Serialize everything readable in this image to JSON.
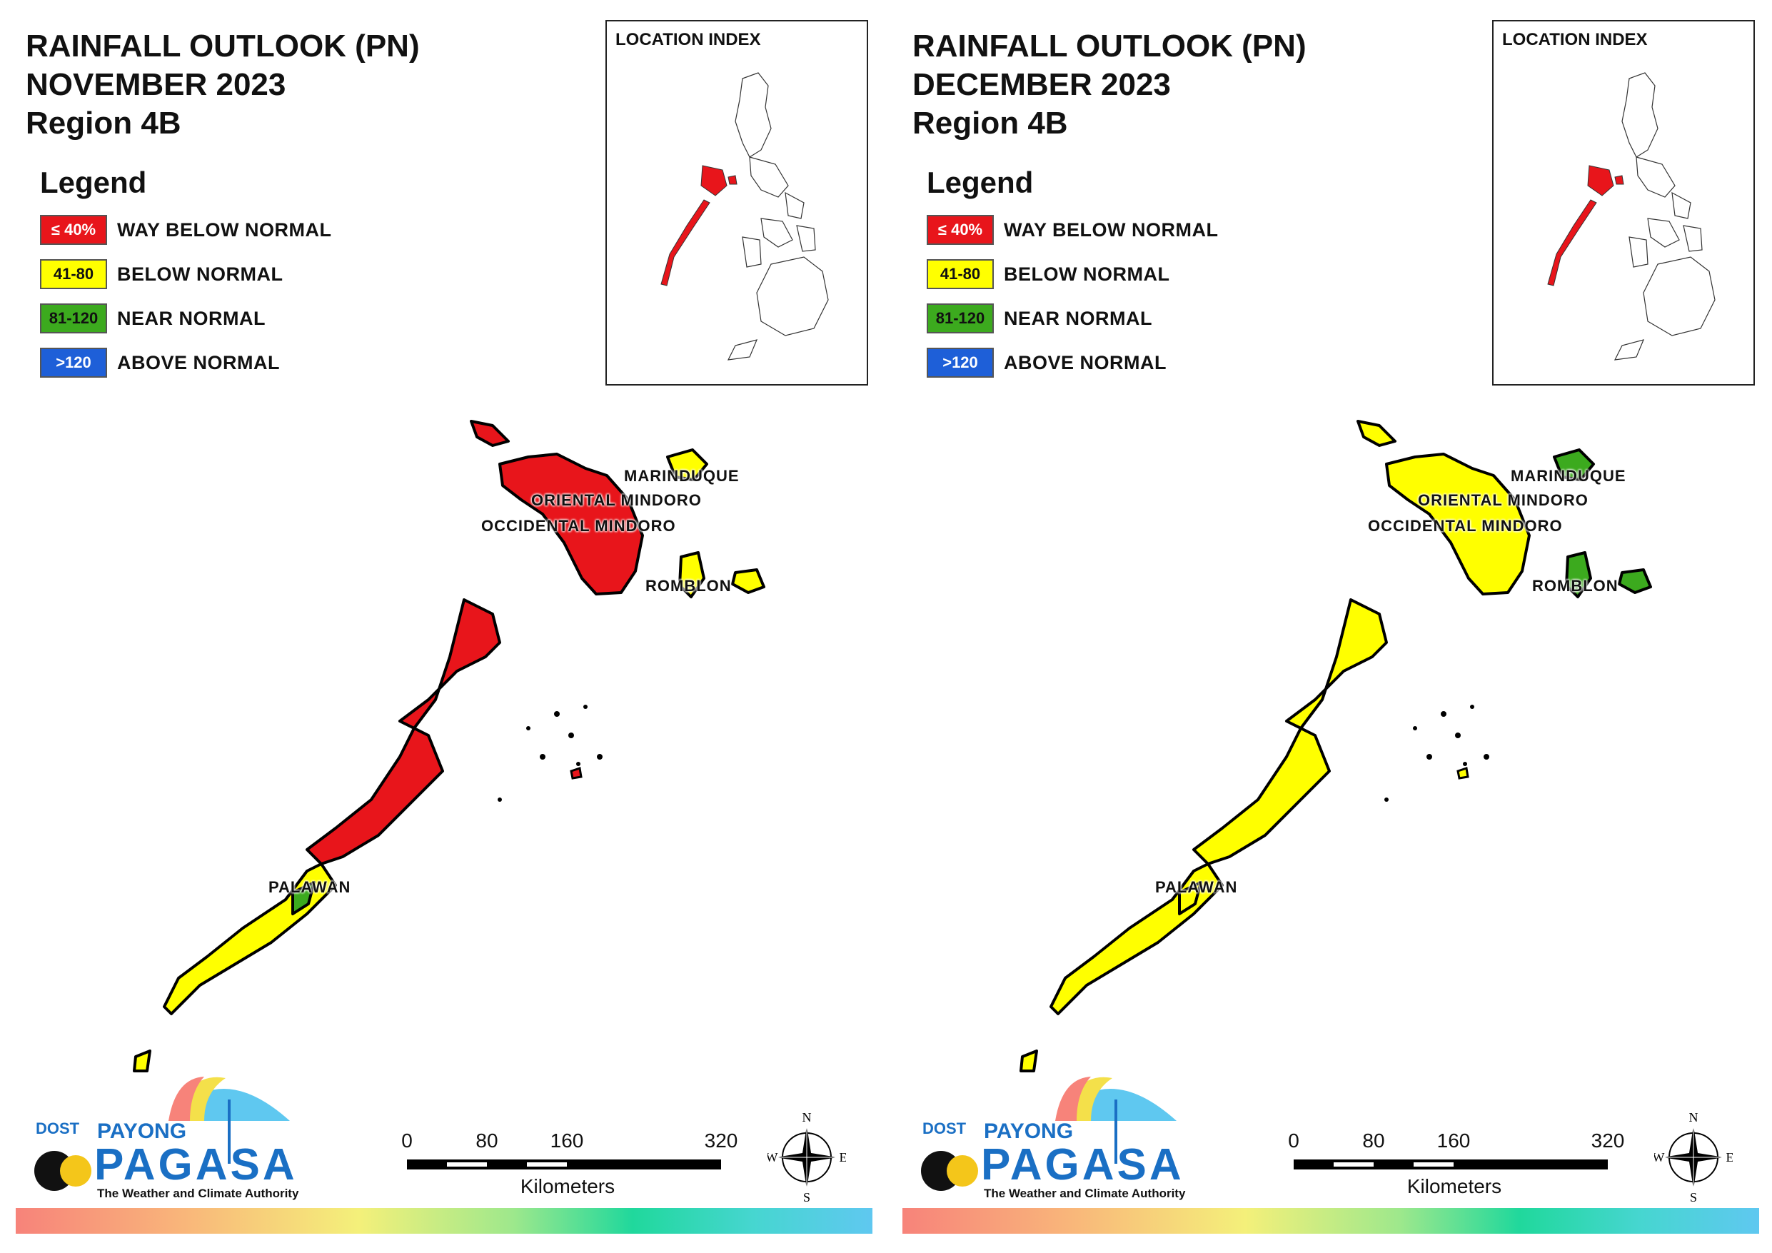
{
  "legend_title": "Legend",
  "index_title": "LOCATION INDEX",
  "legend": [
    {
      "code": "≤ 40%",
      "label": "WAY BELOW NORMAL",
      "color": "#e8151b",
      "text_color": "#ffffff"
    },
    {
      "code": "41-80",
      "label": "BELOW NORMAL",
      "color": "#ffff00",
      "text_color": "#111111"
    },
    {
      "code": "81-120",
      "label": "NEAR NORMAL",
      "color": "#3caa1e",
      "text_color": "#111111"
    },
    {
      "code": ">120",
      "label": "ABOVE NORMAL",
      "color": "#1e5fd8",
      "text_color": "#ffffff"
    }
  ],
  "provinces": [
    "MARINDUQUE",
    "ORIENTAL MINDORO",
    "OCCIDENTAL MINDORO",
    "ROMBLON",
    "PALAWAN"
  ],
  "scale": {
    "ticks": [
      "0",
      "80",
      "160",
      "320"
    ],
    "unit": "Kilometers"
  },
  "compass": {
    "n": "N",
    "s": "S",
    "e": "E",
    "w": "W"
  },
  "logo": {
    "dost": "DOST",
    "payong": "PAYONG",
    "pagasa": "PAGASA",
    "tagline": "The Weather and Climate Authority"
  },
  "maps": [
    {
      "title_line1": "RAINFALL OUTLOOK (PN)",
      "title_line2": "NOVEMBER 2023",
      "title_line3": "Region 4B",
      "category": {
        "marinduque": "below_normal",
        "mindoro": "way_below_normal",
        "romblon": "below_normal",
        "palawan_north": "way_below_normal",
        "palawan_south": "below_normal",
        "palawan_patch": "near_normal"
      }
    },
    {
      "title_line1": "RAINFALL OUTLOOK (PN)",
      "title_line2": "DECEMBER 2023",
      "title_line3": "Region 4B",
      "category": {
        "marinduque": "near_normal",
        "mindoro": "below_normal",
        "romblon": "near_normal",
        "palawan_north": "below_normal",
        "palawan_south": "below_normal",
        "palawan_patch": "below_normal"
      }
    }
  ]
}
